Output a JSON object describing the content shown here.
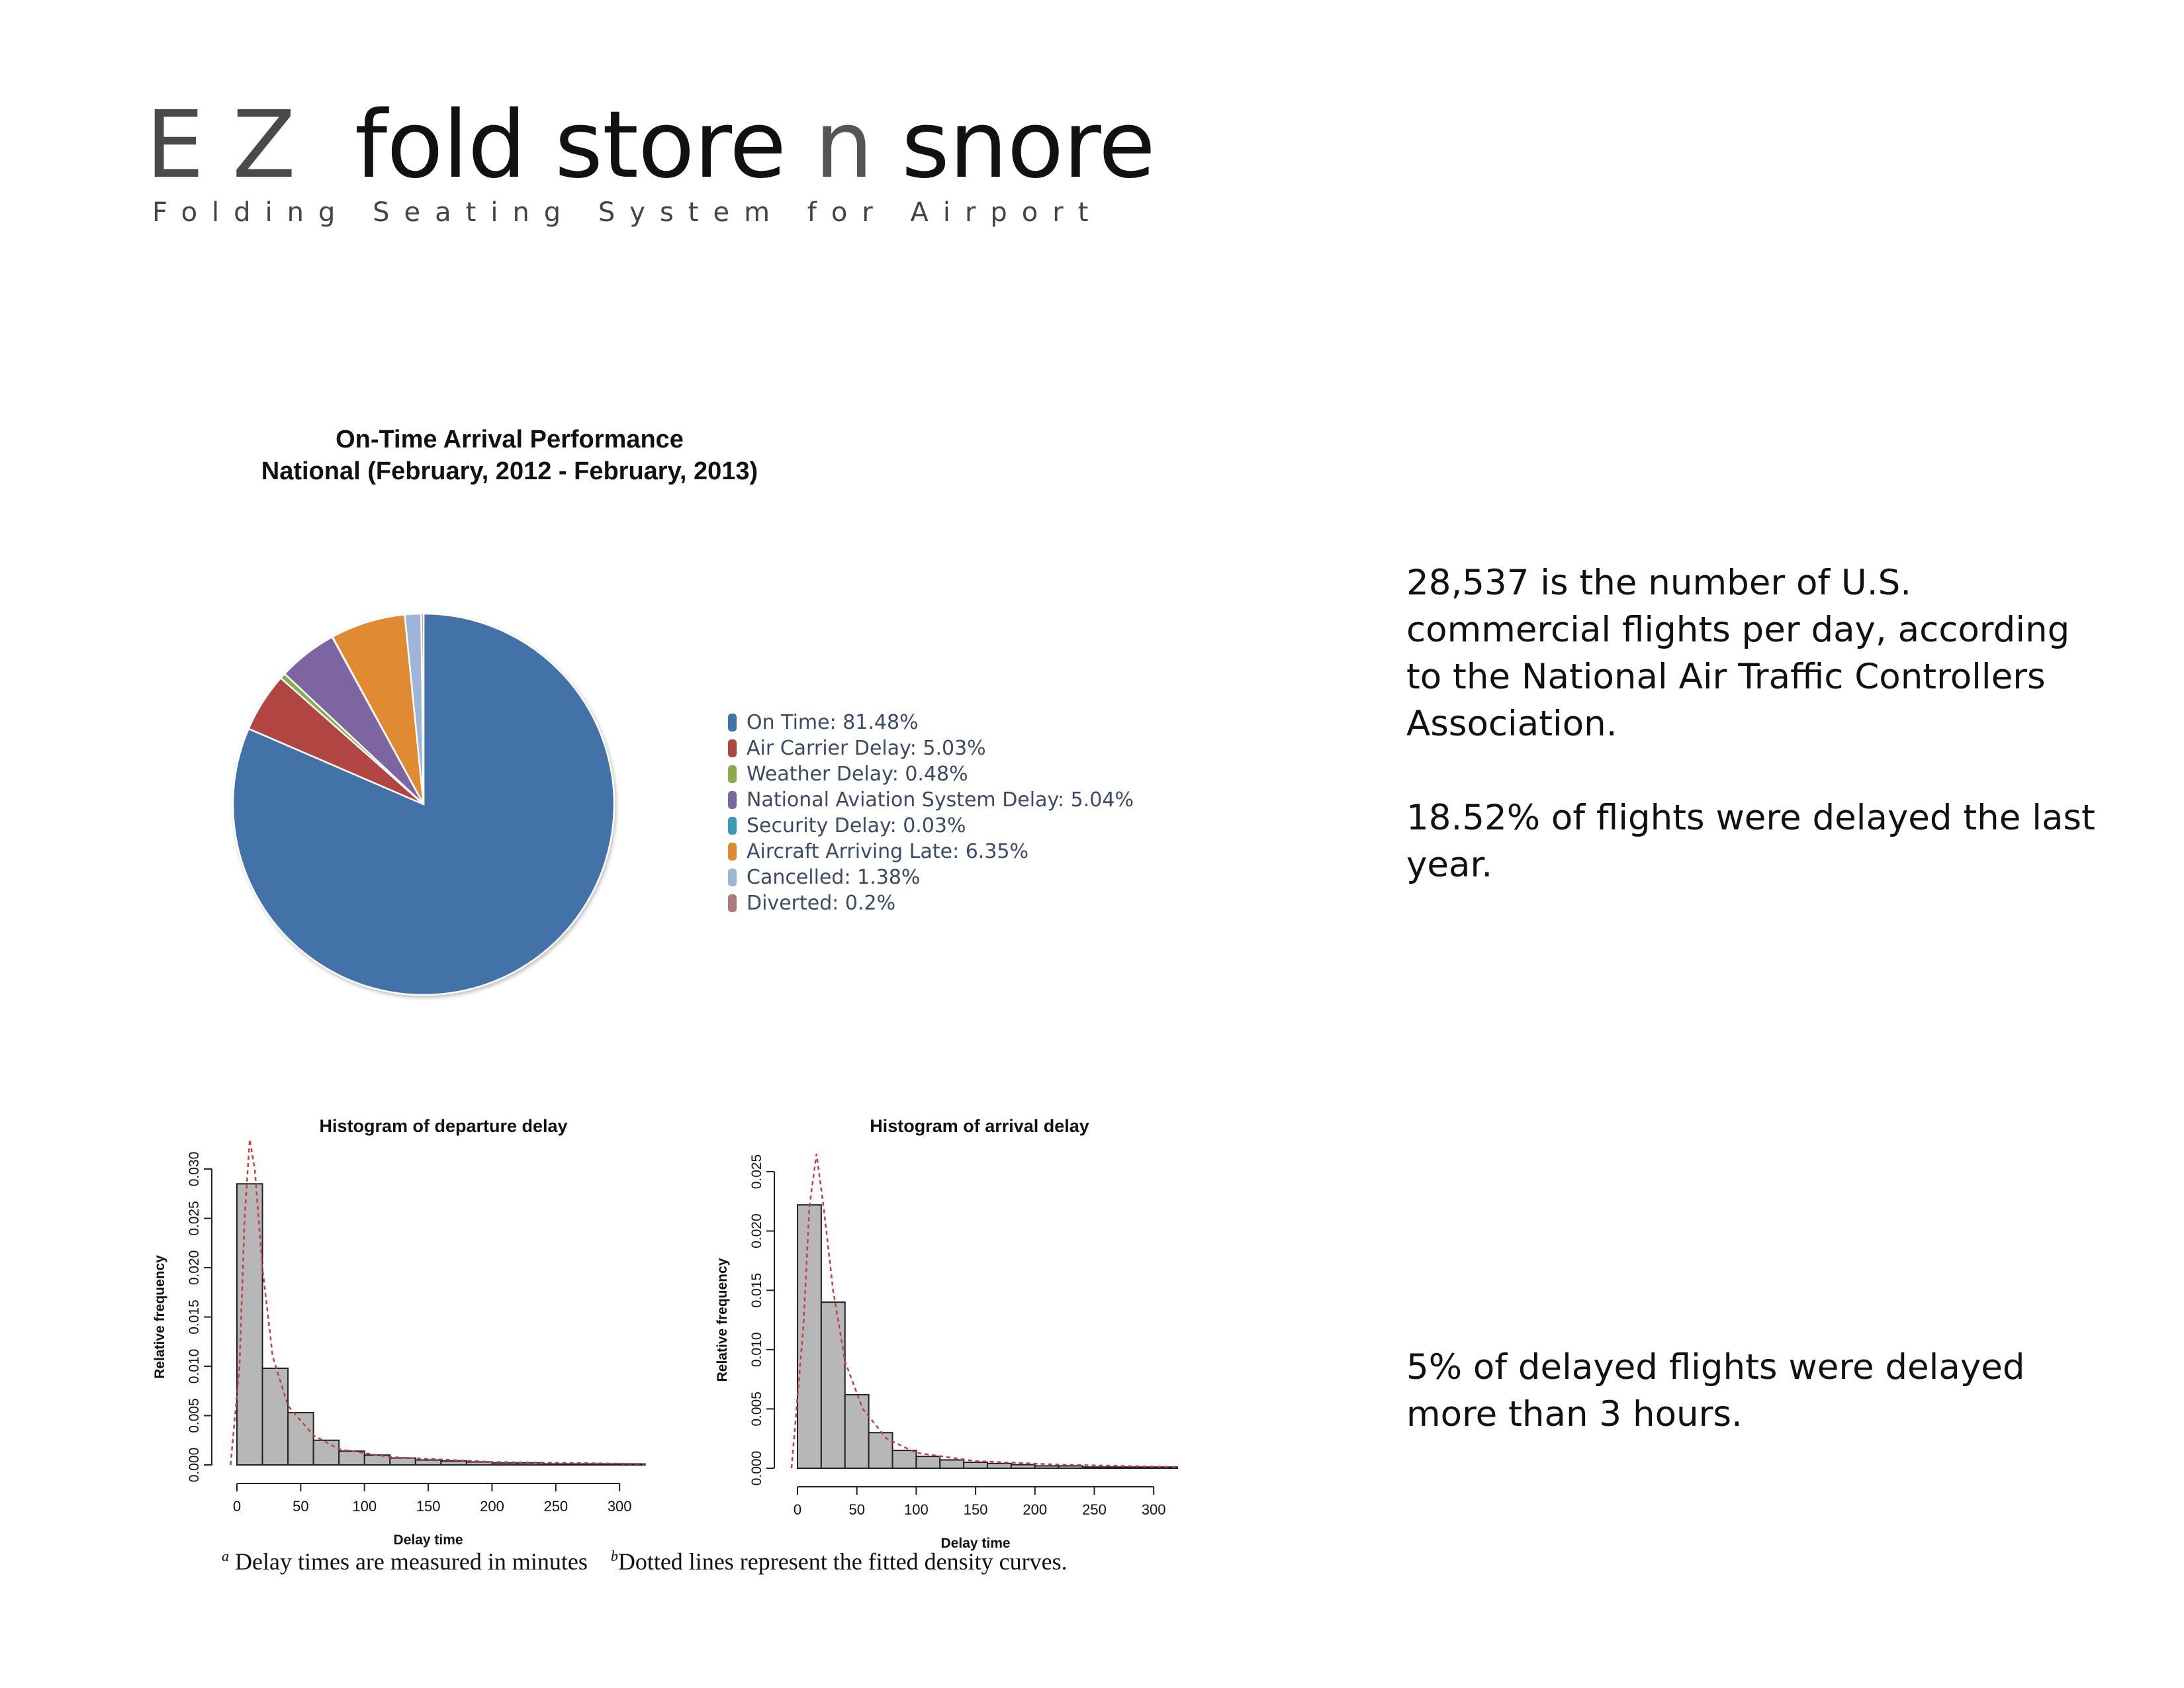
{
  "brand": {
    "ez": "E Z",
    "words": [
      "fold",
      "store",
      "n",
      "snore"
    ],
    "subtitle": "Folding Seating System for Airport"
  },
  "stats": {
    "flights_per_day": "28,537 is the number of U.S. commercial flights per day, according to the National Air Traffic Controllers Association.",
    "delayed_share": "18.52% of flights were delayed the last year.",
    "long_delay": "5% of delayed flights were delayed more than 3 hours."
  },
  "footnote": {
    "a_mark": "a",
    "a_text": "Delay times are measured in minutes",
    "b_mark": "b",
    "b_text": "Dotted lines represent the fitted density curves."
  },
  "chart_data": [
    {
      "type": "pie",
      "title": "On-Time Arrival Performance",
      "subtitle": "National (February, 2012 - February, 2013)",
      "slices": [
        {
          "label": "On Time: 81.48%",
          "value": 81.48,
          "color": "#4272a8"
        },
        {
          "label": "Air Carrier Delay: 5.03%",
          "value": 5.03,
          "color": "#b04542"
        },
        {
          "label": "Weather Delay: 0.48%",
          "value": 0.48,
          "color": "#8aab4a"
        },
        {
          "label": "National Aviation System Delay: 5.04%",
          "value": 5.04,
          "color": "#7b65a0"
        },
        {
          "label": "Security Delay: 0.03%",
          "value": 0.03,
          "color": "#3f9ab6"
        },
        {
          "label": "Aircraft Arriving Late: 6.35%",
          "value": 6.35,
          "color": "#e08a30"
        },
        {
          "label": "Cancelled: 1.38%",
          "value": 1.38,
          "color": "#9db5d6"
        },
        {
          "label": "Diverted: 0.2%",
          "value": 0.2,
          "color": "#b07b7b"
        }
      ],
      "legend_position": "right"
    },
    {
      "type": "bar",
      "title": "Histogram of departure delay",
      "xlabel": "Delay time",
      "ylabel": "Relative frequency",
      "xlim": [
        0,
        330
      ],
      "ylim": [
        0,
        0.03
      ],
      "x_ticks": [
        0,
        50,
        100,
        150,
        200,
        250,
        300
      ],
      "y_ticks": [
        "0.000",
        "0.005",
        "0.010",
        "0.015",
        "0.020",
        "0.025",
        "0.030"
      ],
      "bin_width": 20,
      "bin_starts": [
        0,
        20,
        40,
        60,
        80,
        100,
        120,
        140,
        160,
        180,
        200,
        220,
        240,
        260,
        280,
        300
      ],
      "values": [
        0.0285,
        0.0098,
        0.0053,
        0.0025,
        0.0014,
        0.001,
        0.0007,
        0.0005,
        0.0004,
        0.0003,
        0.0002,
        0.0002,
        0.0001,
        0.0001,
        0.0001,
        0.0001
      ],
      "density_curve": [
        [
          -5,
          0.0
        ],
        [
          2,
          0.01
        ],
        [
          6,
          0.025
        ],
        [
          10,
          0.033
        ],
        [
          14,
          0.03
        ],
        [
          20,
          0.02
        ],
        [
          28,
          0.011
        ],
        [
          40,
          0.006
        ],
        [
          60,
          0.003
        ],
        [
          80,
          0.0016
        ],
        [
          120,
          0.0008
        ],
        [
          200,
          0.0003
        ],
        [
          320,
          0.0001
        ]
      ]
    },
    {
      "type": "bar",
      "title": "Histogram of arrival delay",
      "xlabel": "Delay time",
      "ylabel": "Relative frequency",
      "xlim": [
        0,
        330
      ],
      "ylim": [
        0,
        0.025
      ],
      "x_ticks": [
        0,
        50,
        100,
        150,
        200,
        250,
        300
      ],
      "y_ticks": [
        "0.000",
        "0.005",
        "0.010",
        "0.015",
        "0.020",
        "0.025"
      ],
      "bin_width": 20,
      "bin_starts": [
        0,
        20,
        40,
        60,
        80,
        100,
        120,
        140,
        160,
        180,
        200,
        220,
        240,
        260,
        280,
        300
      ],
      "values": [
        0.0222,
        0.014,
        0.0062,
        0.003,
        0.0015,
        0.001,
        0.0007,
        0.0005,
        0.0004,
        0.0003,
        0.0002,
        0.0002,
        0.0001,
        0.0001,
        0.0001,
        0.0001
      ],
      "density_curve": [
        [
          -5,
          0.0
        ],
        [
          5,
          0.012
        ],
        [
          10,
          0.022
        ],
        [
          16,
          0.0265
        ],
        [
          22,
          0.022
        ],
        [
          30,
          0.015
        ],
        [
          40,
          0.009
        ],
        [
          55,
          0.005
        ],
        [
          75,
          0.0025
        ],
        [
          100,
          0.0013
        ],
        [
          150,
          0.0006
        ],
        [
          220,
          0.0003
        ],
        [
          320,
          0.0001
        ]
      ]
    }
  ]
}
